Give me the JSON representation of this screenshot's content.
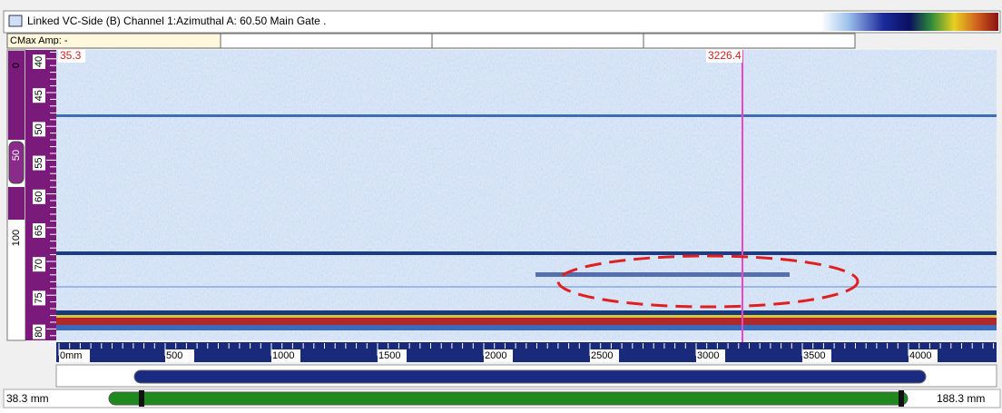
{
  "window": {
    "title": "Linked VC-Side (B) Channel 1:Azimuthal   A: 60.50 Main Gate ."
  },
  "info_row": {
    "cmax": "CMax Amp: -"
  },
  "left_scale": {
    "labels": [
      "0",
      "50",
      "100"
    ]
  },
  "depth_axis": {
    "labels": [
      "40",
      "45",
      "50",
      "55",
      "60",
      "65",
      "70",
      "75",
      "80"
    ]
  },
  "cursors": {
    "top_left_value": "35.3",
    "cursor_value": "3226.4"
  },
  "scan_axis": {
    "labels": [
      "0mm",
      "500",
      "1000",
      "1500",
      "2000",
      "2500",
      "3000",
      "3500",
      "4000"
    ]
  },
  "range": {
    "start": "38.3 mm",
    "end": "188.3 mm"
  }
}
